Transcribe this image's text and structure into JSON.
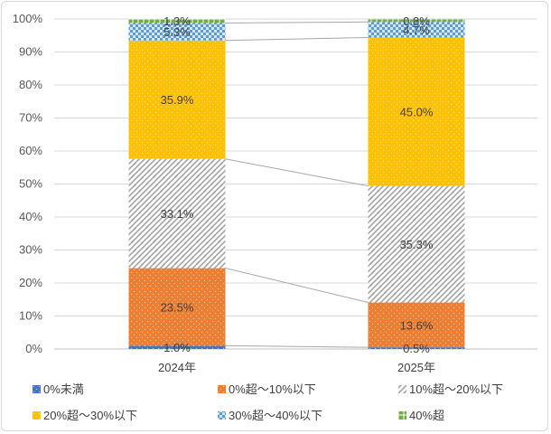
{
  "chart_data": {
    "type": "bar",
    "stacked": true,
    "percent": true,
    "categories": [
      "2024年",
      "2025年"
    ],
    "ylim": [
      0,
      100
    ],
    "yticks": [
      "0%",
      "10%",
      "20%",
      "30%",
      "40%",
      "50%",
      "60%",
      "70%",
      "80%",
      "90%",
      "100%"
    ],
    "grid": true,
    "series_lines": true,
    "legend_position": "bottom",
    "series": [
      {
        "name": "0%未満",
        "values": [
          1.0,
          0.5
        ],
        "labels": [
          "1.0%",
          "0.5%"
        ],
        "color": "#4472c4",
        "pattern": "dots-light"
      },
      {
        "name": "0%超～10%以下",
        "values": [
          23.5,
          13.6
        ],
        "labels": [
          "23.5%",
          "13.6%"
        ],
        "color": "#ed7d31",
        "pattern": "dots-light"
      },
      {
        "name": "10%超～20%以下",
        "values": [
          33.1,
          35.3
        ],
        "labels": [
          "33.1%",
          "35.3%"
        ],
        "color": "#a5a5a5",
        "pattern": "diagonal"
      },
      {
        "name": "20%超～30%以下",
        "values": [
          35.9,
          45.0
        ],
        "labels": [
          "35.9%",
          "45.0%"
        ],
        "color": "#ffc000",
        "pattern": "dots-light"
      },
      {
        "name": "30%超～40%以下",
        "values": [
          5.3,
          4.7
        ],
        "labels": [
          "5.3%",
          "4.7%"
        ],
        "color": "#5b9bd5",
        "pattern": "checker"
      },
      {
        "name": "40%超",
        "values": [
          1.3,
          0.8
        ],
        "labels": [
          "1.3%",
          "0.8%"
        ],
        "color": "#70ad47",
        "pattern": "grid"
      }
    ]
  }
}
